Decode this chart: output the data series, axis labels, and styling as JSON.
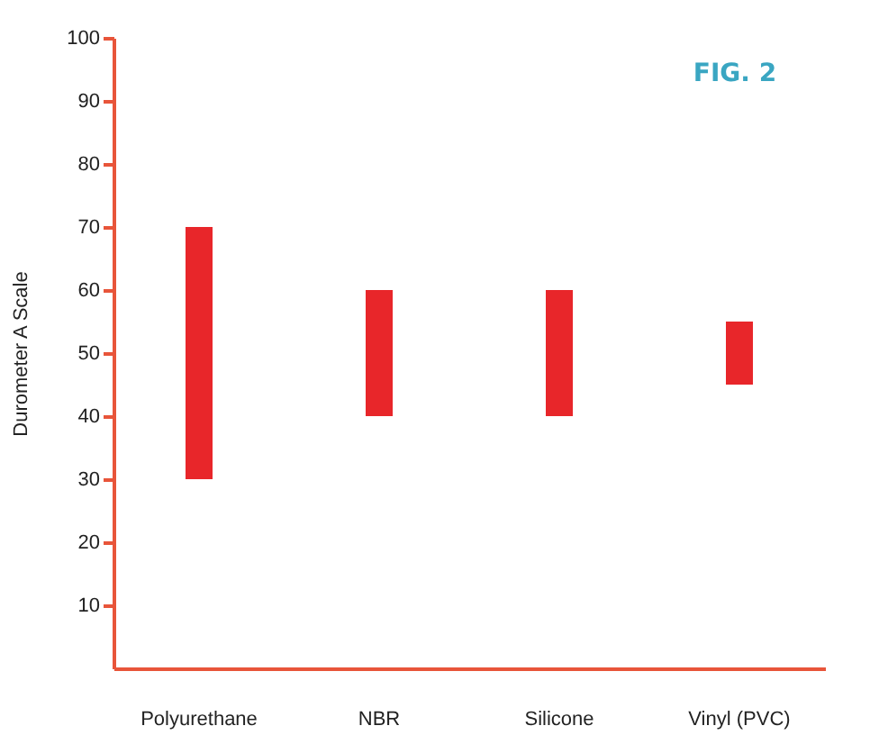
{
  "chart_data": {
    "type": "bar",
    "categories": [
      "Polyurethane",
      "NBR",
      "Silicone",
      "Vinyl (PVC)"
    ],
    "base": [
      30,
      40,
      40,
      45
    ],
    "values": [
      40,
      20,
      20,
      10
    ],
    "color": "#e8262a",
    "ylabel": "Durometer A Scale",
    "ylim": [
      0,
      100
    ],
    "yticks": [
      10,
      20,
      30,
      40,
      50,
      60,
      70,
      80,
      90,
      100
    ],
    "grid": false,
    "annotations": [
      "FIG. 2"
    ]
  }
}
